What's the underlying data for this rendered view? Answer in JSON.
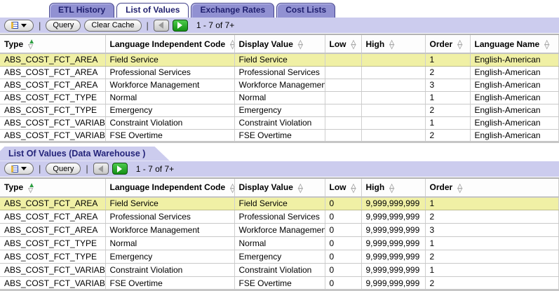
{
  "tab_bar": {
    "tabs": [
      {
        "label": "ETL History",
        "active": false
      },
      {
        "label": "List of Values",
        "active": true
      },
      {
        "label": "Exchange Rates",
        "active": false
      },
      {
        "label": "Cost Lists",
        "active": false
      }
    ]
  },
  "colors": {
    "tab_inactive": "#9191d2",
    "tab_text": "#1f1f6e",
    "toolbar_bg": "#ccccee",
    "selected_row_bg": "#f0f0a5",
    "sorted_arrow": "#2f9e44",
    "next_button": "#149114"
  },
  "sections": [
    {
      "toolbar": {
        "menu_icon": "menu-dropdown-icon",
        "query_label": "Query",
        "clear_cache_label": "Clear Cache",
        "prev_icon": "previous-record-set-icon",
        "next_icon": "next-record-set-icon",
        "record_count": "1 - 7 of 7+"
      },
      "columns": [
        {
          "key": "type",
          "label": "Type",
          "sort": "ascending"
        },
        {
          "key": "lic",
          "label": "Language Independent Code",
          "sort": "none"
        },
        {
          "key": "dv",
          "label": "Display Value",
          "sort": "none"
        },
        {
          "key": "low",
          "label": "Low",
          "sort": "none"
        },
        {
          "key": "high",
          "label": "High",
          "sort": "none"
        },
        {
          "key": "order",
          "label": "Order",
          "sort": "none"
        },
        {
          "key": "lang",
          "label": "Language Name",
          "sort": "none"
        }
      ],
      "selected_row": 0,
      "rows": [
        [
          "ABS_COST_FCT_AREA",
          "Field Service",
          "Field Service",
          "",
          "",
          "1",
          "English-American"
        ],
        [
          "ABS_COST_FCT_AREA",
          "Professional Services",
          "Professional Services",
          "",
          "",
          "2",
          "English-American"
        ],
        [
          "ABS_COST_FCT_AREA",
          "Workforce Management",
          "Workforce Management",
          "",
          "",
          "3",
          "English-American"
        ],
        [
          "ABS_COST_FCT_TYPE",
          "Normal",
          "Normal",
          "",
          "",
          "1",
          "English-American"
        ],
        [
          "ABS_COST_FCT_TYPE",
          "Emergency",
          "Emergency",
          "",
          "",
          "2",
          "English-American"
        ],
        [
          "ABS_COST_FCT_VARIABLE",
          "Constraint Violation",
          "Constraint Violation",
          "",
          "",
          "1",
          "English-American"
        ],
        [
          "ABS_COST_FCT_VARIABLE",
          "FSE Overtime",
          "FSE Overtime",
          "",
          "",
          "2",
          "English-American"
        ]
      ]
    },
    {
      "title": "List Of Values (Data Warehouse )",
      "toolbar": {
        "menu_icon": "menu-dropdown-icon",
        "query_label": "Query",
        "prev_icon": "previous-record-set-icon",
        "next_icon": "next-record-set-icon",
        "record_count": "1 - 7 of 7+"
      },
      "columns": [
        {
          "key": "type",
          "label": "Type",
          "sort": "ascending"
        },
        {
          "key": "lic",
          "label": "Language Independent Code",
          "sort": "none"
        },
        {
          "key": "dv",
          "label": "Display Value",
          "sort": "none"
        },
        {
          "key": "low",
          "label": "Low",
          "sort": "none"
        },
        {
          "key": "high",
          "label": "High",
          "sort": "none"
        },
        {
          "key": "order",
          "label": "Order",
          "sort": "none"
        }
      ],
      "selected_row": 0,
      "rows": [
        [
          "ABS_COST_FCT_AREA",
          "Field Service",
          "Field Service",
          "0",
          "9,999,999,999",
          "1"
        ],
        [
          "ABS_COST_FCT_AREA",
          "Professional Services",
          "Professional Services",
          "0",
          "9,999,999,999",
          "2"
        ],
        [
          "ABS_COST_FCT_AREA",
          "Workforce Management",
          "Workforce Management",
          "0",
          "9,999,999,999",
          "3"
        ],
        [
          "ABS_COST_FCT_TYPE",
          "Normal",
          "Normal",
          "0",
          "9,999,999,999",
          "1"
        ],
        [
          "ABS_COST_FCT_TYPE",
          "Emergency",
          "Emergency",
          "0",
          "9,999,999,999",
          "2"
        ],
        [
          "ABS_COST_FCT_VARIABLE",
          "Constraint Violation",
          "Constraint Violation",
          "0",
          "9,999,999,999",
          "1"
        ],
        [
          "ABS_COST_FCT_VARIABLE",
          "FSE Overtime",
          "FSE Overtime",
          "0",
          "9,999,999,999",
          "2"
        ]
      ]
    }
  ]
}
